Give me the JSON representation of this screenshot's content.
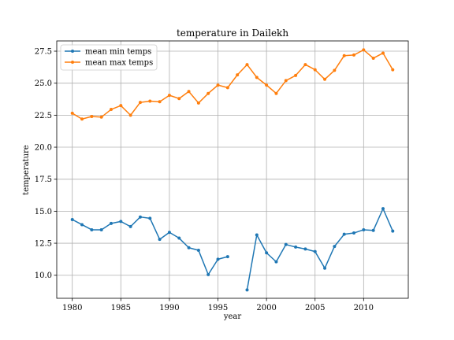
{
  "chart_data": {
    "type": "line",
    "title": "temperature in Dailekh",
    "xlabel": "year",
    "ylabel": "temperature",
    "xlim": [
      1978.4,
      2014.6
    ],
    "ylim": [
      8.2,
      28.3
    ],
    "xticks": [
      1980,
      1985,
      1990,
      1995,
      2000,
      2005,
      2010
    ],
    "yticks": [
      10.0,
      12.5,
      15.0,
      17.5,
      20.0,
      22.5,
      25.0,
      27.5
    ],
    "grid": true,
    "legend_position": "top-left",
    "series": [
      {
        "name": "mean min temps",
        "color": "#1f77b4",
        "x": [
          1980,
          1981,
          1982,
          1983,
          1984,
          1985,
          1986,
          1987,
          1988,
          1989,
          1990,
          1991,
          1992,
          1993,
          1994,
          1995,
          1996,
          1997,
          1998,
          1999,
          2000,
          2001,
          2002,
          2003,
          2004,
          2005,
          2006,
          2007,
          2008,
          2009,
          2010,
          2011,
          2012,
          2013
        ],
        "values": [
          14.35,
          13.95,
          13.55,
          13.55,
          14.05,
          14.2,
          13.8,
          14.55,
          14.45,
          12.8,
          13.35,
          12.9,
          12.15,
          11.95,
          10.05,
          11.25,
          11.45,
          null,
          8.85,
          13.15,
          11.75,
          11.05,
          12.4,
          12.2,
          12.05,
          11.85,
          10.55,
          12.25,
          13.2,
          13.3,
          13.55,
          13.5,
          15.2,
          13.45
        ]
      },
      {
        "name": "mean max temps",
        "color": "#ff7f0e",
        "x": [
          1980,
          1981,
          1982,
          1983,
          1984,
          1985,
          1986,
          1987,
          1988,
          1989,
          1990,
          1991,
          1992,
          1993,
          1994,
          1995,
          1996,
          1997,
          1998,
          1999,
          2000,
          2001,
          2002,
          2003,
          2004,
          2005,
          2006,
          2007,
          2008,
          2009,
          2010,
          2011,
          2012,
          2013
        ],
        "values": [
          22.65,
          22.2,
          22.4,
          22.35,
          22.95,
          23.25,
          22.5,
          23.5,
          23.6,
          23.55,
          24.05,
          23.8,
          24.35,
          23.45,
          24.2,
          24.85,
          24.65,
          25.65,
          26.45,
          25.45,
          24.85,
          24.2,
          25.2,
          25.6,
          26.45,
          26.05,
          25.3,
          26.0,
          27.15,
          27.2,
          27.6,
          26.95,
          27.35,
          26.05
        ]
      }
    ]
  }
}
